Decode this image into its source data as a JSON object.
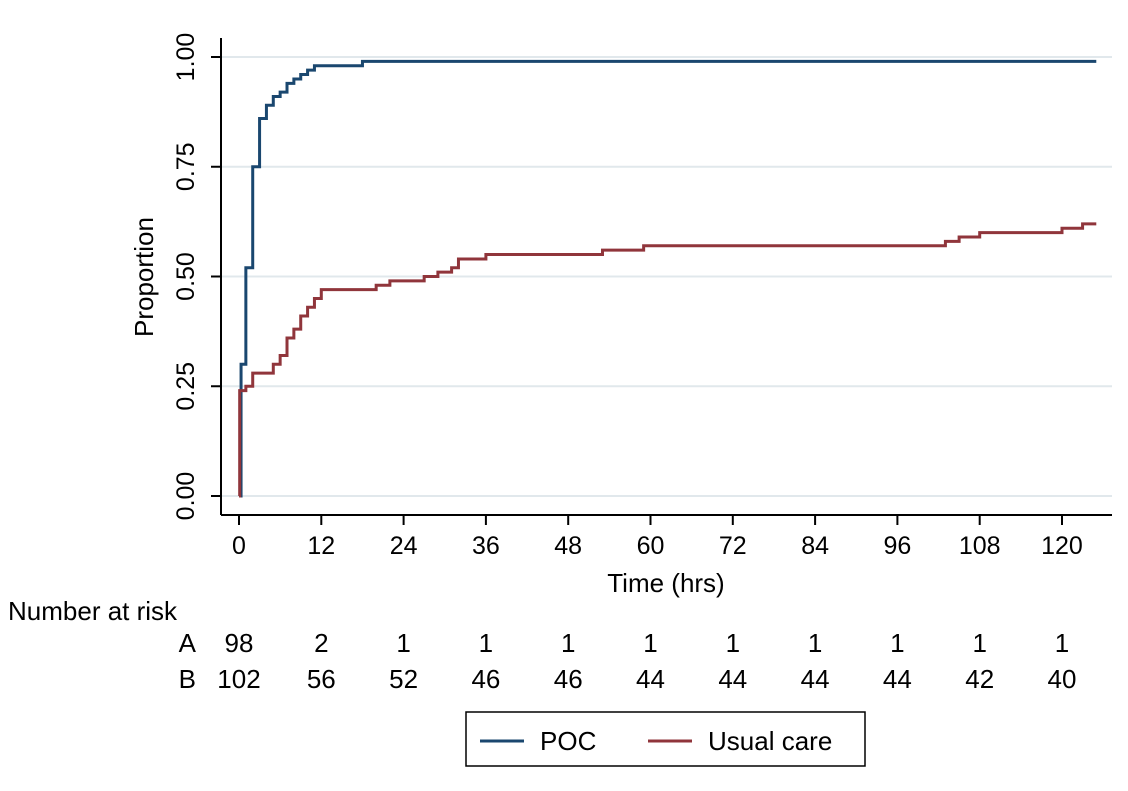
{
  "chart_data": {
    "type": "line",
    "step": true,
    "xlabel": "Time (hrs)",
    "ylabel": "Proportion",
    "xlim": [
      0,
      125
    ],
    "ylim": [
      0,
      1
    ],
    "xticks": [
      0,
      12,
      24,
      36,
      48,
      60,
      72,
      84,
      96,
      108,
      120
    ],
    "yticks": [
      0,
      0.25,
      0.5,
      0.75,
      1
    ],
    "ytick_labels": [
      "0.00",
      "0.25",
      "0.50",
      "0.75",
      "1.00"
    ],
    "grid": "horizontal",
    "series": [
      {
        "name": "POC",
        "color": "#1a476f",
        "x": [
          0,
          0.3,
          1,
          2,
          3,
          4,
          5,
          6,
          7,
          8,
          9,
          10,
          11,
          18,
          125
        ],
        "y": [
          0,
          0.3,
          0.52,
          0.75,
          0.86,
          0.89,
          0.91,
          0.92,
          0.94,
          0.95,
          0.96,
          0.97,
          0.98,
          0.99,
          0.99
        ]
      },
      {
        "name": "Usual care",
        "color": "#90353b",
        "x": [
          0,
          0.1,
          1,
          2,
          5,
          6,
          7,
          8,
          9,
          10,
          11,
          12,
          20,
          22,
          27,
          29,
          31,
          32,
          36,
          53,
          59,
          103,
          105,
          108,
          120,
          123,
          125
        ],
        "y": [
          0,
          0.24,
          0.25,
          0.28,
          0.3,
          0.32,
          0.36,
          0.38,
          0.41,
          0.43,
          0.45,
          0.47,
          0.48,
          0.49,
          0.5,
          0.51,
          0.52,
          0.54,
          0.55,
          0.56,
          0.57,
          0.58,
          0.59,
          0.6,
          0.61,
          0.62,
          0.62
        ]
      }
    ],
    "risk_table": {
      "title": "Number at risk",
      "rows": [
        {
          "label": "A",
          "values": [
            "98",
            "2",
            "1",
            "1",
            "1",
            "1",
            "1",
            "1",
            "1",
            "1",
            "1"
          ]
        },
        {
          "label": "B",
          "values": [
            "102",
            "56",
            "52",
            "46",
            "46",
            "44",
            "44",
            "44",
            "44",
            "42",
            "40"
          ]
        }
      ]
    },
    "legend": {
      "position": "bottom",
      "entries": [
        {
          "label": "POC",
          "color": "#1a476f"
        },
        {
          "label": "Usual care",
          "color": "#90353b"
        }
      ]
    }
  }
}
